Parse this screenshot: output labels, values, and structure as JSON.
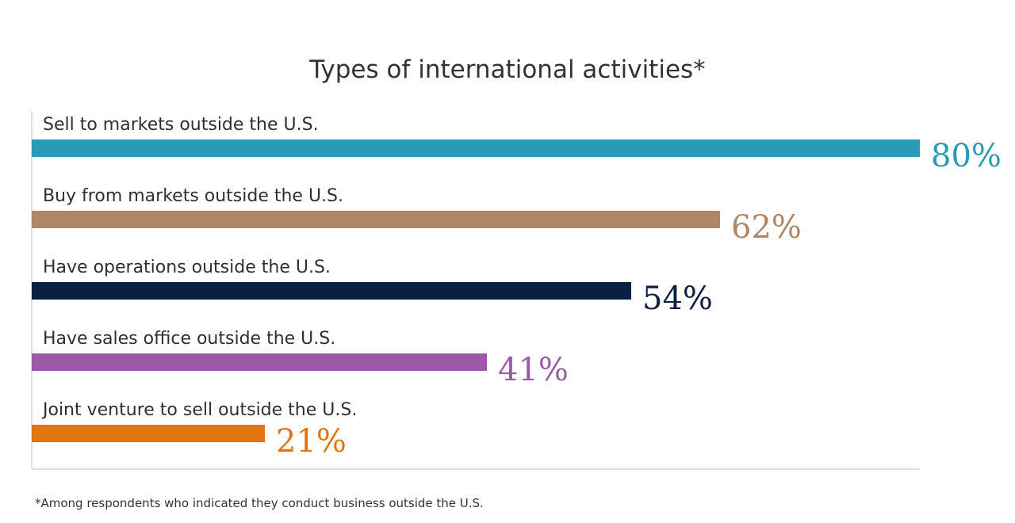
{
  "chart_data": {
    "type": "bar",
    "orientation": "horizontal",
    "title": "Types of international activities*",
    "categories": [
      "Sell to markets outside the U.S.",
      "Buy from markets outside the U.S.",
      "Have operations outside the U.S.",
      "Have sales office outside the U.S.",
      "Joint venture to sell outside the U.S."
    ],
    "values": [
      80,
      62,
      54,
      41,
      21
    ],
    "value_labels": [
      "80%",
      "62%",
      "54%",
      "41%",
      "21%"
    ],
    "colors": [
      "#2a9bb5",
      "#b08664",
      "#0b1f45",
      "#9b59a8",
      "#e27411"
    ],
    "xlim": [
      0,
      80
    ],
    "grid": false,
    "legend": "none",
    "footnote": "*Among respondents who indicated they conduct business outside the U.S."
  }
}
